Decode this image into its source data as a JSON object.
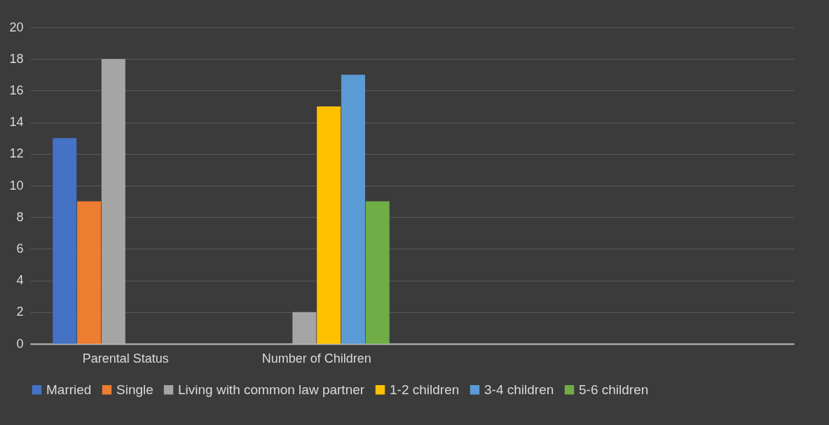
{
  "chart_data": {
    "type": "bar",
    "categories": [
      "Parental Status",
      "Number of Children",
      null,
      null
    ],
    "series": [
      {
        "name": "Married",
        "color": "#4472c4",
        "values": [
          13,
          null,
          null,
          null
        ]
      },
      {
        "name": "Single",
        "color": "#ed7d31",
        "values": [
          9,
          null,
          null,
          null
        ]
      },
      {
        "name": "Living with common law partner",
        "color": "#a5a5a5",
        "values": [
          18,
          2,
          null,
          null
        ]
      },
      {
        "name": "1-2 children",
        "color": "#ffc000",
        "values": [
          null,
          15,
          null,
          null
        ]
      },
      {
        "name": "3-4 children",
        "color": "#5b9bd5",
        "values": [
          null,
          17,
          null,
          null
        ]
      },
      {
        "name": "5-6 children",
        "color": "#70ad47",
        "values": [
          null,
          9,
          null,
          null
        ]
      }
    ],
    "ylim": [
      0,
      20
    ],
    "yticks": [
      0,
      2,
      4,
      6,
      8,
      10,
      12,
      14,
      16,
      18,
      20
    ],
    "grid": "y",
    "legend": "bottom"
  }
}
